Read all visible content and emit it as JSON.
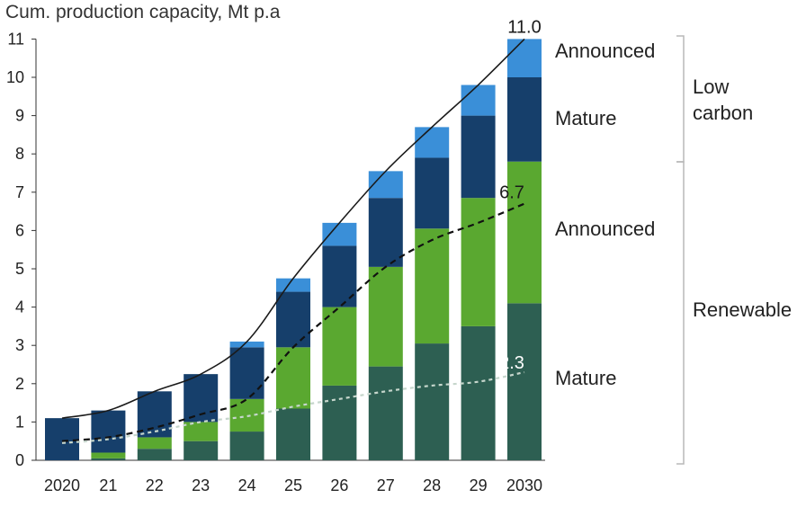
{
  "chart_data": {
    "type": "bar",
    "stacked": true,
    "title": "Cum. production capacity, Mt p.a",
    "categories": [
      "2020",
      "21",
      "22",
      "23",
      "24",
      "25",
      "26",
      "27",
      "28",
      "29",
      "2030"
    ],
    "ylim": [
      0,
      11
    ],
    "yticks": [
      0,
      1,
      2,
      3,
      4,
      5,
      6,
      7,
      8,
      9,
      10,
      11
    ],
    "grid": false,
    "series": [
      {
        "group": "Renewable",
        "name": "Mature",
        "color": "#2d5f52",
        "values": [
          0.0,
          0.05,
          0.3,
          0.5,
          0.75,
          1.35,
          1.95,
          2.45,
          3.05,
          3.5,
          4.1
        ]
      },
      {
        "group": "Renewable",
        "name": "Announced",
        "color": "#5aa830",
        "values": [
          0.0,
          0.15,
          0.3,
          0.5,
          0.85,
          1.6,
          2.05,
          2.6,
          3.0,
          3.35,
          3.7
        ]
      },
      {
        "group": "Low carbon",
        "name": "Mature",
        "color": "#163f6b",
        "values": [
          1.1,
          1.1,
          1.2,
          1.25,
          1.35,
          1.45,
          1.6,
          1.8,
          1.85,
          2.15,
          2.2
        ]
      },
      {
        "group": "Low carbon",
        "name": "Announced",
        "color": "#3a8fd8",
        "values": [
          0.0,
          0.0,
          0.0,
          0.0,
          0.15,
          0.35,
          0.6,
          0.7,
          0.8,
          0.8,
          1.0
        ]
      }
    ],
    "lines": [
      {
        "name": "",
        "style": "solid",
        "color": "#1a1a1a",
        "values": [
          1.1,
          1.3,
          1.8,
          2.25,
          3.1,
          4.75,
          6.2,
          7.55,
          8.7,
          9.8,
          11.0
        ],
        "end_label": "11.0"
      },
      {
        "name": "",
        "style": "dashed",
        "color": "#111111",
        "values": [
          0.5,
          0.6,
          0.85,
          1.2,
          1.6,
          2.95,
          4.0,
          5.05,
          5.75,
          6.2,
          6.7
        ],
        "end_label": "6.7"
      },
      {
        "name": "",
        "style": "dotted",
        "color": "#c6d6cc",
        "values": [
          0.45,
          0.55,
          0.75,
          1.0,
          1.15,
          1.4,
          1.6,
          1.8,
          1.95,
          2.05,
          2.3
        ],
        "end_label": "2.3"
      }
    ],
    "annotations": {
      "right_labels": [
        "Announced",
        "Mature",
        "Announced",
        "Mature"
      ],
      "group_labels": [
        "Low carbon",
        "Renewable"
      ]
    }
  }
}
